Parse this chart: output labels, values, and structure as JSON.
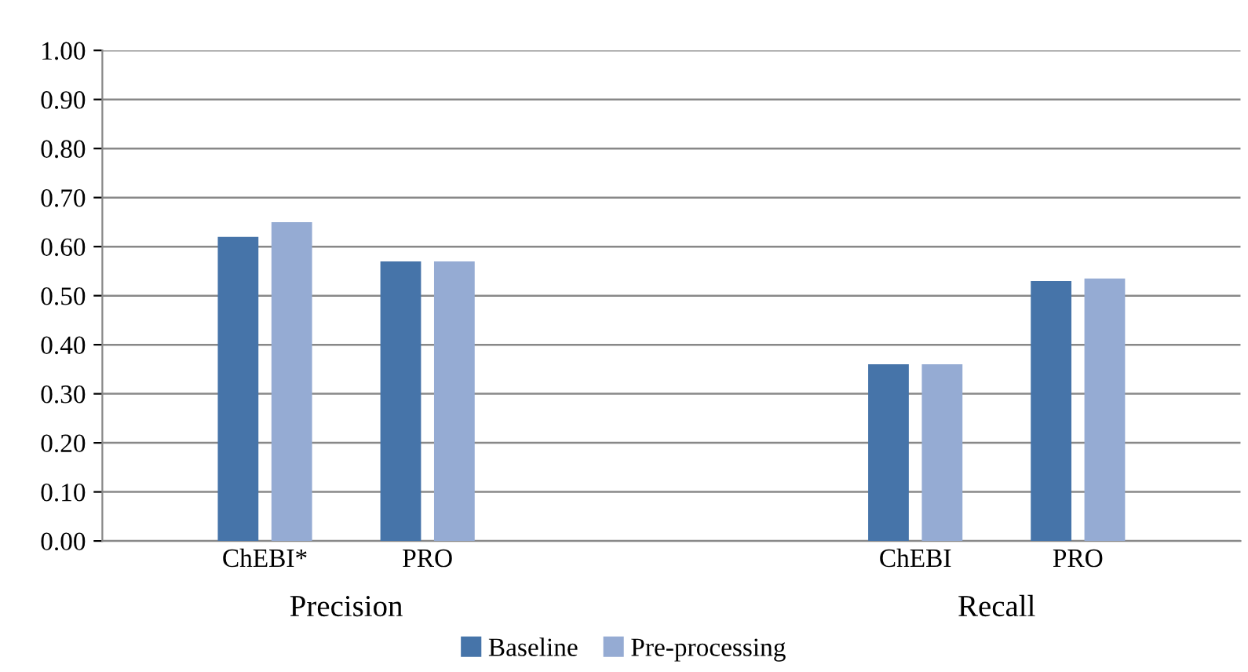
{
  "chart_data": {
    "type": "bar",
    "categories": [
      "ChEBI*",
      "PRO",
      null,
      null,
      "ChEBI",
      "PRO"
    ],
    "series": [
      {
        "name": "Baseline",
        "color": "#4674a9",
        "values": [
          0.62,
          0.57,
          null,
          null,
          0.36,
          0.53
        ]
      },
      {
        "name": "Pre-processing",
        "color": "#95abd3",
        "values": [
          0.65,
          0.57,
          null,
          null,
          0.36,
          0.535
        ]
      }
    ],
    "annotations": [
      "Precision",
      "Recall"
    ],
    "ylim": [
      0,
      1
    ],
    "yticks": [
      {
        "value": 0,
        "label": "0.00"
      },
      {
        "value": 0.1,
        "label": "0.10"
      },
      {
        "value": 0.2,
        "label": "0.20"
      },
      {
        "value": 0.3,
        "label": "0.30"
      },
      {
        "value": 0.4,
        "label": "0.40"
      },
      {
        "value": 0.5,
        "label": "0.50"
      },
      {
        "value": 0.6,
        "label": "0.60"
      },
      {
        "value": 0.7,
        "label": "0.70"
      },
      {
        "value": 0.8,
        "label": "0.80"
      },
      {
        "value": 0.9,
        "label": "0.90"
      },
      {
        "value": 1.0,
        "label": "1.00"
      }
    ],
    "grid": "y",
    "legend": "bottom"
  }
}
